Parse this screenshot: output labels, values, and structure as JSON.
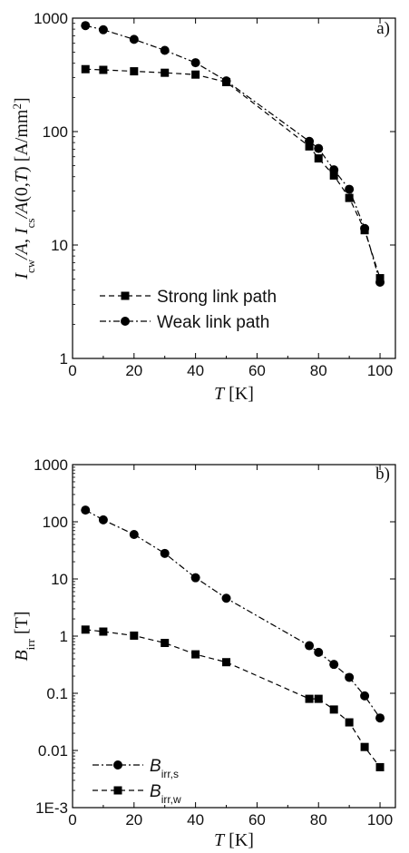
{
  "chart_data": [
    {
      "type": "line",
      "panel_label": "a)",
      "x_axis": {
        "label_italic": "T",
        "label_unit": " [K]",
        "range": [
          0,
          105
        ],
        "ticks": [
          0,
          20,
          40,
          60,
          80,
          100
        ],
        "tick_labels": [
          "0",
          "20",
          "40",
          "60",
          "80",
          "100"
        ]
      },
      "y_axis": {
        "scale": "log",
        "range": [
          1,
          1000
        ],
        "ticks": [
          1,
          10,
          100,
          1000
        ],
        "tick_labels": [
          "1",
          "10",
          "100",
          "1000"
        ],
        "label_parts": [
          {
            "t": "I",
            "style": "italic"
          },
          {
            "t": "cw",
            "style": "sub"
          },
          {
            "t": "/",
            "style": "italic"
          },
          {
            "t": "A",
            "style": "italic"
          },
          {
            "t": ", ",
            "style": "normal"
          },
          {
            "t": "I",
            "style": "italic"
          },
          {
            "t": "cs",
            "style": "sub"
          },
          {
            "t": "/",
            "style": "italic"
          },
          {
            "t": "A",
            "style": "italic"
          },
          {
            "t": "(0,",
            "style": "normal"
          },
          {
            "t": "T",
            "style": "italic"
          },
          {
            "t": ") [A/mm",
            "style": "normal"
          },
          {
            "t": "2",
            "style": "sup"
          },
          {
            "t": "]",
            "style": "normal"
          }
        ]
      },
      "legend_position": "bottom-left",
      "series": [
        {
          "name": "Strong link path",
          "marker": "square",
          "dash": "dashed",
          "x": [
            4.2,
            10,
            20,
            30,
            40,
            50,
            77,
            80,
            85,
            90,
            95,
            100
          ],
          "y": [
            355,
            350,
            340,
            330,
            318,
            273,
            74,
            58,
            41,
            26,
            13.5,
            5.1
          ]
        },
        {
          "name": "Weak link path",
          "marker": "circle",
          "dash": "dash-dot",
          "x": [
            4.2,
            10,
            20,
            30,
            40,
            50,
            77,
            80,
            85,
            90,
            95,
            100
          ],
          "y": [
            860,
            790,
            650,
            520,
            405,
            280,
            82,
            71,
            46,
            31,
            14,
            4.7
          ]
        }
      ]
    },
    {
      "type": "line",
      "panel_label": "b)",
      "x_axis": {
        "label_italic": "T",
        "label_unit": " [K]",
        "range": [
          0,
          105
        ],
        "ticks": [
          0,
          20,
          40,
          60,
          80,
          100
        ],
        "tick_labels": [
          "0",
          "20",
          "40",
          "60",
          "80",
          "100"
        ]
      },
      "y_axis": {
        "scale": "log",
        "range": [
          0.001,
          1000
        ],
        "ticks": [
          0.001,
          0.01,
          0.1,
          1,
          10,
          100,
          1000
        ],
        "tick_labels": [
          "1E-3",
          "0.01",
          "0.1",
          "1",
          "10",
          "100",
          "1000"
        ],
        "label_parts": [
          {
            "t": "B",
            "style": "italic"
          },
          {
            "t": "irr",
            "style": "sub"
          },
          {
            "t": " [T]",
            "style": "normal"
          }
        ]
      },
      "legend_position": "bottom-left",
      "series": [
        {
          "name_main": "B",
          "name_sub": "irr,s",
          "marker": "circle",
          "dash": "dash-dot",
          "x": [
            4.2,
            10,
            20,
            30,
            40,
            50,
            77,
            80,
            85,
            90,
            95,
            100
          ],
          "y": [
            160,
            108,
            60,
            28,
            10.5,
            4.6,
            0.68,
            0.52,
            0.32,
            0.19,
            0.09,
            0.037
          ]
        },
        {
          "name_main": "B",
          "name_sub": "irr,w",
          "marker": "square",
          "dash": "dashed",
          "x": [
            4.2,
            10,
            20,
            30,
            40,
            50,
            77,
            80,
            85,
            90,
            95,
            100
          ],
          "y": [
            1.3,
            1.2,
            1.02,
            0.76,
            0.48,
            0.35,
            0.08,
            0.08,
            0.052,
            0.031,
            0.0115,
            0.0051
          ]
        }
      ]
    }
  ]
}
